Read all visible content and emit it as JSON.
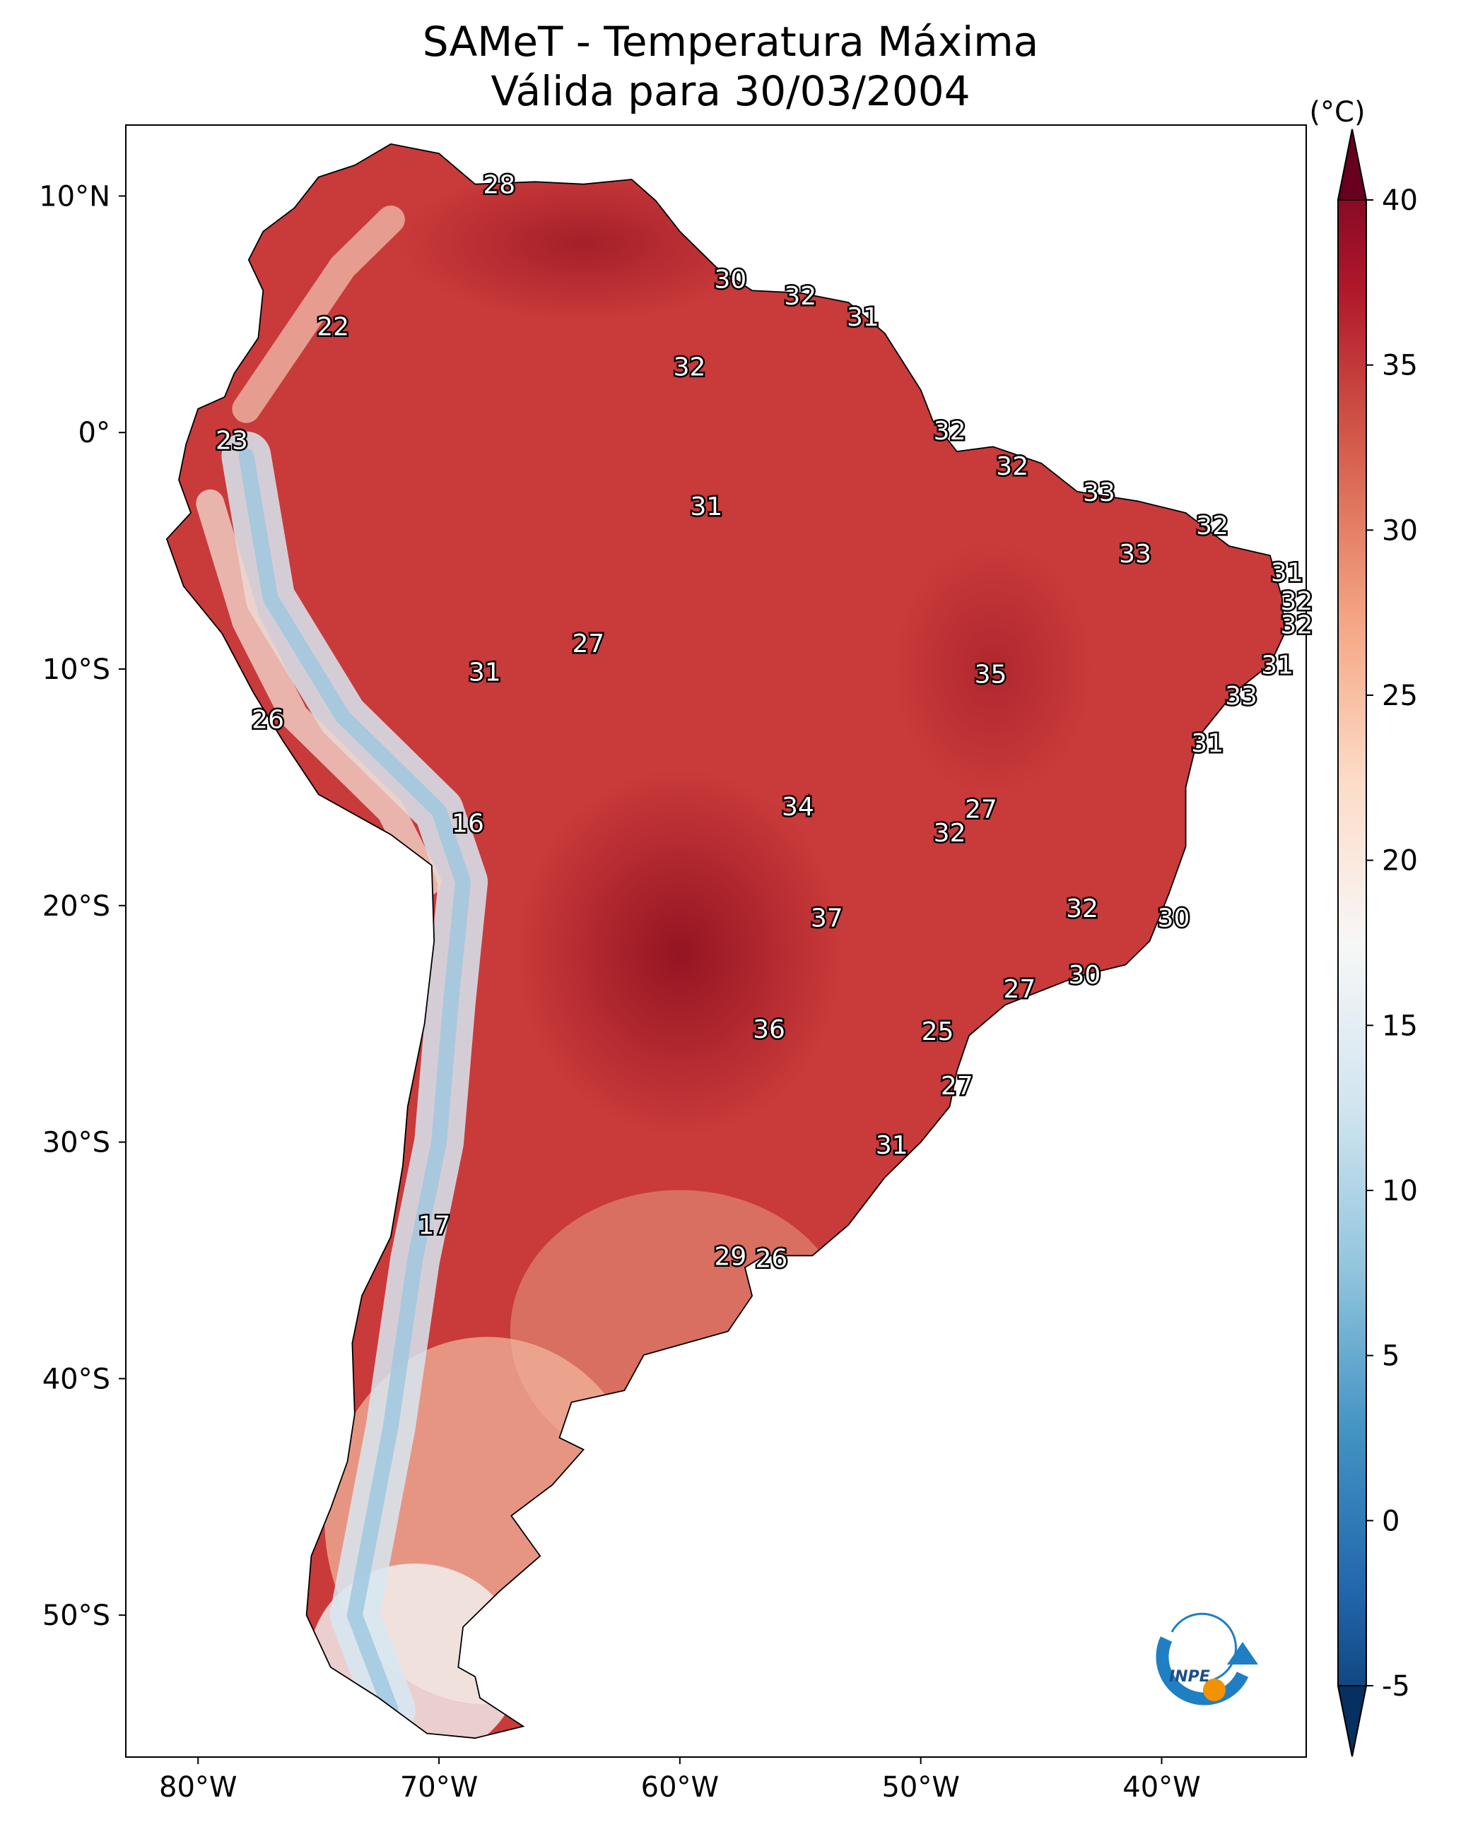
{
  "title": {
    "line1": "SAMeT - Temperatura Máxima",
    "line2": "Válida para 30/03/2004"
  },
  "map": {
    "lon_range": [
      -83,
      -34
    ],
    "lat_range": [
      -56,
      13
    ],
    "x_ticks": [
      {
        "lon": -80,
        "label": "80°W"
      },
      {
        "lon": -70,
        "label": "70°W"
      },
      {
        "lon": -60,
        "label": "60°W"
      },
      {
        "lon": -50,
        "label": "50°W"
      },
      {
        "lon": -40,
        "label": "40°W"
      }
    ],
    "y_ticks": [
      {
        "lat": 10,
        "label": "10°N"
      },
      {
        "lat": 0,
        "label": "0°"
      },
      {
        "lat": -10,
        "label": "10°S"
      },
      {
        "lat": -20,
        "label": "20°S"
      },
      {
        "lat": -30,
        "label": "30°S"
      },
      {
        "lat": -40,
        "label": "40°S"
      },
      {
        "lat": -50,
        "label": "50°S"
      }
    ],
    "outline": [
      [
        -77.3,
        8.5
      ],
      [
        -76,
        9.5
      ],
      [
        -75,
        10.8
      ],
      [
        -73.5,
        11.3
      ],
      [
        -72,
        12.2
      ],
      [
        -71,
        12
      ],
      [
        -70,
        11.8
      ],
      [
        -68.5,
        10.5
      ],
      [
        -66,
        10.6
      ],
      [
        -64,
        10.5
      ],
      [
        -62,
        10.7
      ],
      [
        -61,
        9.8
      ],
      [
        -60,
        8.5
      ],
      [
        -58.5,
        7
      ],
      [
        -57,
        6
      ],
      [
        -55,
        5.9
      ],
      [
        -53,
        5.5
      ],
      [
        -51.5,
        4.2
      ],
      [
        -50,
        1.8
      ],
      [
        -49.5,
        0.5
      ],
      [
        -48.5,
        -0.8
      ],
      [
        -47,
        -0.6
      ],
      [
        -45,
        -1.3
      ],
      [
        -43.5,
        -2.5
      ],
      [
        -41,
        -2.9
      ],
      [
        -39,
        -3.4
      ],
      [
        -37.2,
        -4.8
      ],
      [
        -35.5,
        -5.2
      ],
      [
        -35,
        -7
      ],
      [
        -34.9,
        -8.5
      ],
      [
        -35.5,
        -9.8
      ],
      [
        -37,
        -11
      ],
      [
        -38.5,
        -12.9
      ],
      [
        -39,
        -15
      ],
      [
        -39,
        -17.5
      ],
      [
        -39.7,
        -19.5
      ],
      [
        -40.5,
        -21.5
      ],
      [
        -41.5,
        -22.5
      ],
      [
        -43.5,
        -23
      ],
      [
        -45,
        -23.6
      ],
      [
        -46.5,
        -24.2
      ],
      [
        -48,
        -25.5
      ],
      [
        -48.5,
        -27
      ],
      [
        -48.8,
        -28.5
      ],
      [
        -50,
        -30
      ],
      [
        -51.5,
        -31.5
      ],
      [
        -53,
        -33.5
      ],
      [
        -54.5,
        -34.8
      ],
      [
        -56.5,
        -34.8
      ],
      [
        -57.3,
        -35.3
      ],
      [
        -57,
        -36.5
      ],
      [
        -58,
        -38
      ],
      [
        -61.5,
        -39
      ],
      [
        -62.3,
        -40.5
      ],
      [
        -64.5,
        -41
      ],
      [
        -65,
        -42.5
      ],
      [
        -64,
        -43
      ],
      [
        -65.3,
        -44.5
      ],
      [
        -67,
        -45.8
      ],
      [
        -65.8,
        -47.5
      ],
      [
        -67.5,
        -49
      ],
      [
        -69,
        -50.5
      ],
      [
        -69.2,
        -52.2
      ],
      [
        -68.5,
        -52.6
      ],
      [
        -68.3,
        -53.5
      ],
      [
        -66.5,
        -54.7
      ],
      [
        -68.5,
        -55.2
      ],
      [
        -70.5,
        -55
      ],
      [
        -72.5,
        -53.5
      ],
      [
        -74.5,
        -52.2
      ],
      [
        -75.5,
        -50
      ],
      [
        -75.3,
        -47.5
      ],
      [
        -74.5,
        -45.5
      ],
      [
        -73.8,
        -43.5
      ],
      [
        -73.5,
        -41.5
      ],
      [
        -73.6,
        -38.5
      ],
      [
        -73.2,
        -36.5
      ],
      [
        -72,
        -34
      ],
      [
        -71.5,
        -31
      ],
      [
        -71.3,
        -28.5
      ],
      [
        -70.6,
        -25
      ],
      [
        -70.2,
        -21.5
      ],
      [
        -70.3,
        -18.3
      ],
      [
        -72,
        -17
      ],
      [
        -75,
        -15.3
      ],
      [
        -76.5,
        -13
      ],
      [
        -77.7,
        -11
      ],
      [
        -79,
        -8.5
      ],
      [
        -80.6,
        -6.5
      ],
      [
        -81.3,
        -4.5
      ],
      [
        -80.3,
        -3.4
      ],
      [
        -80.8,
        -2
      ],
      [
        -80.5,
        -0.5
      ],
      [
        -80,
        1
      ],
      [
        -78.9,
        1.5
      ],
      [
        -78.5,
        2.5
      ],
      [
        -77.5,
        4
      ],
      [
        -77.3,
        6
      ],
      [
        -77.9,
        7.3
      ]
    ],
    "temp_labels": [
      {
        "lon": -67.5,
        "lat": 10.5,
        "text": "28"
      },
      {
        "lon": -57.9,
        "lat": 6.5,
        "text": "30"
      },
      {
        "lon": -55,
        "lat": 5.8,
        "text": "32"
      },
      {
        "lon": -52.4,
        "lat": 4.9,
        "text": "31"
      },
      {
        "lon": -74.4,
        "lat": 4.5,
        "text": "22"
      },
      {
        "lon": -59.6,
        "lat": 2.8,
        "text": "32"
      },
      {
        "lon": -78.6,
        "lat": -0.3,
        "text": "23"
      },
      {
        "lon": -48.8,
        "lat": 0.1,
        "text": "32"
      },
      {
        "lon": -46.2,
        "lat": -1.4,
        "text": "32"
      },
      {
        "lon": -58.9,
        "lat": -3.1,
        "text": "31"
      },
      {
        "lon": -42.6,
        "lat": -2.5,
        "text": "33"
      },
      {
        "lon": -37.9,
        "lat": -3.9,
        "text": "32"
      },
      {
        "lon": -41.1,
        "lat": -5.1,
        "text": "33"
      },
      {
        "lon": -34.8,
        "lat": -5.9,
        "text": "31"
      },
      {
        "lon": -34.4,
        "lat": -7.1,
        "text": "32"
      },
      {
        "lon": -34.4,
        "lat": -8.1,
        "text": "32"
      },
      {
        "lon": -63.8,
        "lat": -8.9,
        "text": "27"
      },
      {
        "lon": -35.2,
        "lat": -9.8,
        "text": "31"
      },
      {
        "lon": -68.1,
        "lat": -10.1,
        "text": "31"
      },
      {
        "lon": -47.1,
        "lat": -10.2,
        "text": "35"
      },
      {
        "lon": -36.7,
        "lat": -11.1,
        "text": "33"
      },
      {
        "lon": -77.1,
        "lat": -12.1,
        "text": "26"
      },
      {
        "lon": -38.1,
        "lat": -13.1,
        "text": "31"
      },
      {
        "lon": -55.1,
        "lat": -15.8,
        "text": "34"
      },
      {
        "lon": -47.5,
        "lat": -15.9,
        "text": "27"
      },
      {
        "lon": -48.8,
        "lat": -16.9,
        "text": "32"
      },
      {
        "lon": -68.8,
        "lat": -16.5,
        "text": "16"
      },
      {
        "lon": -43.3,
        "lat": -20.1,
        "text": "32"
      },
      {
        "lon": -53.9,
        "lat": -20.5,
        "text": "37"
      },
      {
        "lon": -39.5,
        "lat": -20.5,
        "text": "30"
      },
      {
        "lon": -43.2,
        "lat": -22.9,
        "text": "30"
      },
      {
        "lon": -45.9,
        "lat": -23.5,
        "text": "27"
      },
      {
        "lon": -56.3,
        "lat": -25.2,
        "text": "36"
      },
      {
        "lon": -49.3,
        "lat": -25.3,
        "text": "25"
      },
      {
        "lon": -48.5,
        "lat": -27.6,
        "text": "27"
      },
      {
        "lon": -51.2,
        "lat": -30.1,
        "text": "31"
      },
      {
        "lon": -70.2,
        "lat": -33.5,
        "text": "17"
      },
      {
        "lon": -57.9,
        "lat": -34.8,
        "text": "29"
      },
      {
        "lon": -56.2,
        "lat": -34.9,
        "text": "26"
      }
    ]
  },
  "colorbar": {
    "unit_label": "(°C)",
    "min": -5,
    "max": 40,
    "ticks": [
      {
        "value": 40,
        "label": "40"
      },
      {
        "value": 35,
        "label": "35"
      },
      {
        "value": 30,
        "label": "30"
      },
      {
        "value": 25,
        "label": "25"
      },
      {
        "value": 20,
        "label": "20"
      },
      {
        "value": 15,
        "label": "15"
      },
      {
        "value": 10,
        "label": "10"
      },
      {
        "value": 5,
        "label": "5"
      },
      {
        "value": 0,
        "label": "0"
      },
      {
        "value": -5,
        "label": "-5"
      }
    ],
    "colors": [
      "#053061",
      "#2166ac",
      "#4393c3",
      "#92c5de",
      "#d1e5f0",
      "#f7f7f7",
      "#fddbc7",
      "#f4a582",
      "#d6604d",
      "#b2182b",
      "#67001f"
    ],
    "over_color": "#67001f",
    "under_color": "#053061"
  },
  "logo": {
    "text": "INPE",
    "ring_color": "#1f7fc2",
    "dot_color": "#f39200"
  },
  "shading": {
    "land_color": "#c93a3a",
    "hot_color": "#9e1727",
    "cold_color": "#f2f2f2",
    "andes_color": "#d7e8f2"
  }
}
